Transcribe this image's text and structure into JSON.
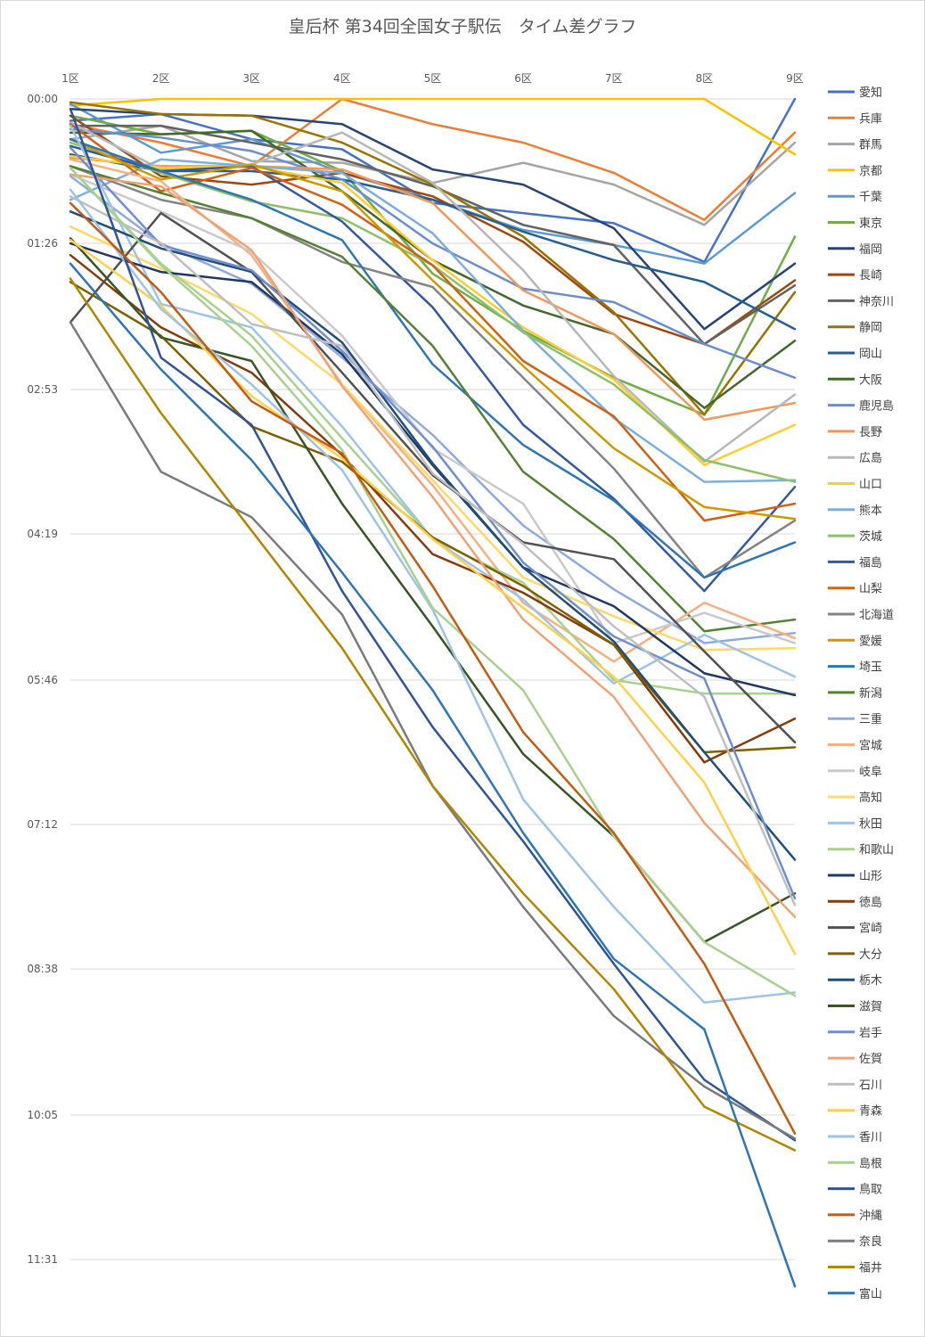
{
  "chart_data": {
    "type": "line",
    "title": "皇后杯 第34回全国女子駅伝　タイム差グラフ",
    "xlabel": "",
    "ylabel": "",
    "x": [
      "1区",
      "2区",
      "3区",
      "4区",
      "5区",
      "6区",
      "7区",
      "8区",
      "9区"
    ],
    "y_ticks": [
      "00:00",
      "01:26",
      "02:53",
      "04:19",
      "05:46",
      "07:12",
      "08:38",
      "10:05",
      "11:31"
    ],
    "ylim_seconds": [
      0,
      709
    ],
    "y_inverted": true,
    "grid": true,
    "legend_position": "right",
    "series": [
      {
        "name": "愛知",
        "color": "#4472C4",
        "values": [
          13,
          9,
          24,
          30,
          62,
          68,
          74,
          97,
          0
        ]
      },
      {
        "name": "兵庫",
        "color": "#ED7D31",
        "values": [
          15,
          26,
          40,
          0,
          15,
          26,
          44,
          72,
          20
        ]
      },
      {
        "name": "群馬",
        "color": "#A5A5A5",
        "values": [
          24,
          16,
          37,
          38,
          50,
          38,
          51,
          75,
          26
        ]
      },
      {
        "name": "京都",
        "color": "#FFC000",
        "values": [
          4,
          0,
          0,
          0,
          0,
          0,
          0,
          0,
          33
        ]
      },
      {
        "name": "千葉",
        "color": "#5B9BD5",
        "values": [
          3,
          32,
          24,
          44,
          60,
          78,
          87,
          98,
          56
        ]
      },
      {
        "name": "東京",
        "color": "#70AD47",
        "values": [
          10,
          21,
          19,
          43,
          104,
          138,
          166,
          188,
          82
        ]
      },
      {
        "name": "福岡",
        "color": "#264478",
        "values": [
          6,
          9,
          10,
          15,
          42,
          51,
          77,
          137,
          98
        ]
      },
      {
        "name": "長崎",
        "color": "#9E480E",
        "values": [
          10,
          46,
          51,
          44,
          58,
          85,
          128,
          146,
          108
        ]
      },
      {
        "name": "神奈川",
        "color": "#636363",
        "values": [
          16,
          16,
          26,
          36,
          52,
          75,
          87,
          146,
          111
        ]
      },
      {
        "name": "静岡",
        "color": "#997300",
        "values": [
          2,
          9,
          10,
          26,
          51,
          82,
          127,
          188,
          115
        ]
      },
      {
        "name": "岡山",
        "color": "#255E91",
        "values": [
          33,
          43,
          43,
          48,
          60,
          79,
          96,
          109,
          137
        ]
      },
      {
        "name": "大阪",
        "color": "#43682B",
        "values": [
          20,
          21,
          19,
          55,
          96,
          123,
          140,
          184,
          144
        ]
      },
      {
        "name": "鹿児島",
        "color": "#698ED0",
        "values": [
          18,
          23,
          31,
          48,
          86,
          113,
          121,
          146,
          166
        ]
      },
      {
        "name": "長野",
        "color": "#F1975A",
        "values": [
          35,
          40,
          40,
          42,
          62,
          114,
          140,
          191,
          181
        ]
      },
      {
        "name": "広島",
        "color": "#B7B7B7",
        "values": [
          14,
          42,
          39,
          20,
          50,
          102,
          165,
          216,
          176
        ]
      },
      {
        "name": "山口",
        "color": "#FFCD33",
        "values": [
          34,
          41,
          40,
          50,
          96,
          136,
          167,
          218,
          194
        ]
      },
      {
        "name": "熊本",
        "color": "#7CAFDD",
        "values": [
          60,
          36,
          40,
          44,
          80,
          138,
          190,
          228,
          227
        ]
      },
      {
        "name": "茨城",
        "color": "#8CC168",
        "values": [
          26,
          44,
          61,
          71,
          99,
          139,
          170,
          215,
          228
        ]
      },
      {
        "name": "福島",
        "color": "#335AA1",
        "values": [
          28,
          43,
          40,
          73,
          124,
          194,
          238,
          293,
          231
        ]
      },
      {
        "name": "山梨",
        "color": "#D26012",
        "values": [
          15,
          55,
          41,
          63,
          99,
          156,
          189,
          251,
          241
        ]
      },
      {
        "name": "北海道",
        "color": "#848484",
        "values": [
          40,
          60,
          71,
          97,
          112,
          166,
          220,
          285,
          251
        ]
      },
      {
        "name": "愛媛",
        "color": "#CC9A00",
        "values": [
          24,
          48,
          39,
          55,
          108,
          159,
          208,
          243,
          250
        ]
      },
      {
        "name": "埼玉",
        "color": "#2E75B6",
        "values": [
          24,
          43,
          60,
          84,
          158,
          206,
          239,
          285,
          264
        ]
      },
      {
        "name": "新潟",
        "color": "#548235",
        "values": [
          40,
          56,
          71,
          94,
          147,
          222,
          262,
          317,
          310
        ]
      },
      {
        "name": "三重",
        "color": "#8FAADC",
        "values": [
          46,
          86,
          110,
          154,
          200,
          254,
          292,
          324,
          318
        ]
      },
      {
        "name": "宮城",
        "color": "#F4B183",
        "values": [
          36,
          49,
          93,
          170,
          230,
          300,
          335,
          300,
          321
        ]
      },
      {
        "name": "岐阜",
        "color": "#C9C9C9",
        "values": [
          45,
          67,
          91,
          141,
          208,
          241,
          324,
          306,
          324
        ]
      },
      {
        "name": "高知",
        "color": "#FFD966",
        "values": [
          76,
          101,
          128,
          170,
          227,
          285,
          308,
          328,
          327
        ]
      },
      {
        "name": "秋田",
        "color": "#9DC3E6",
        "values": [
          16,
          122,
          136,
          195,
          262,
          298,
          348,
          319,
          344
        ]
      },
      {
        "name": "和歌山",
        "color": "#A9D18E",
        "values": [
          41,
          98,
          141,
          202,
          262,
          288,
          346,
          354,
          354
        ]
      },
      {
        "name": "山形",
        "color": "#203864",
        "values": [
          86,
          103,
          109,
          152,
          218,
          279,
          302,
          342,
          355
        ]
      },
      {
        "name": "徳島",
        "color": "#843C0C",
        "values": [
          93,
          136,
          163,
          212,
          271,
          294,
          325,
          395,
          369
        ]
      },
      {
        "name": "宮崎",
        "color": "#525252",
        "values": [
          133,
          68,
          103,
          163,
          224,
          264,
          274,
          329,
          383
        ]
      },
      {
        "name": "大分",
        "color": "#7F6000",
        "values": [
          109,
          141,
          195,
          216,
          261,
          290,
          325,
          389,
          386
        ]
      },
      {
        "name": "栃木",
        "color": "#1F4E79",
        "values": [
          67,
          89,
          103,
          145,
          217,
          279,
          323,
          389,
          453
        ]
      },
      {
        "name": "滋賀",
        "color": "#375623",
        "values": [
          83,
          142,
          156,
          241,
          314,
          390,
          439,
          502,
          473
        ]
      },
      {
        "name": "岩手",
        "color": "#6F8ED0",
        "values": [
          29,
          87,
          102,
          150,
          207,
          276,
          320,
          345,
          476
        ]
      },
      {
        "name": "佐賀",
        "color": "#F0A275",
        "values": [
          45,
          52,
          90,
          171,
          237,
          310,
          356,
          431,
          487
        ]
      },
      {
        "name": "石川",
        "color": "#BFBFBF",
        "values": [
          58,
          86,
          134,
          147,
          223,
          265,
          314,
          356,
          480
        ]
      },
      {
        "name": "青森",
        "color": "#FFD04A",
        "values": [
          84,
          123,
          177,
          214,
          262,
          303,
          344,
          407,
          509
        ]
      },
      {
        "name": "香川",
        "color": "#9DC3E6",
        "values": [
          54,
          125,
          170,
          221,
          304,
          417,
          481,
          538,
          532
        ]
      },
      {
        "name": "島根",
        "color": "#A9D18E",
        "values": [
          41,
          99,
          147,
          209,
          303,
          352,
          439,
          502,
          534
        ]
      },
      {
        "name": "鳥取",
        "color": "#2F5597",
        "values": [
          6,
          154,
          194,
          293,
          374,
          442,
          515,
          584,
          620
        ]
      },
      {
        "name": "沖縄",
        "color": "#C55A11",
        "values": [
          62,
          115,
          180,
          211,
          290,
          377,
          437,
          515,
          616
        ]
      },
      {
        "name": "奈良",
        "color": "#7B7B7B",
        "values": [
          133,
          222,
          249,
          307,
          409,
          481,
          546,
          588,
          619
        ]
      },
      {
        "name": "福井",
        "color": "#B38600",
        "values": [
          107,
          187,
          257,
          327,
          409,
          473,
          530,
          600,
          626
        ]
      },
      {
        "name": "富山",
        "color": "#2E75B6",
        "values": [
          98,
          161,
          215,
          282,
          352,
          437,
          512,
          554,
          707
        ]
      }
    ]
  }
}
